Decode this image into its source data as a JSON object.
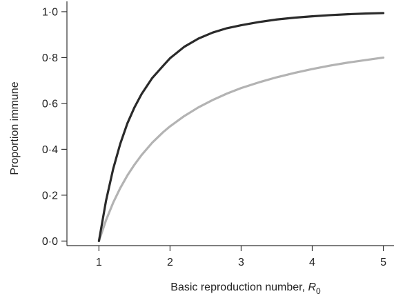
{
  "chart_data": {
    "type": "line",
    "title": "",
    "xlabel": "Basic reproduction number, ",
    "xlabel_symbol": "R",
    "xlabel_subscript": "0",
    "ylabel": "Proportion immune",
    "xlim": [
      0.55,
      5.15
    ],
    "ylim": [
      -0.02,
      1.045
    ],
    "xticks": [
      {
        "value": 1,
        "label": "1"
      },
      {
        "value": 2,
        "label": "2"
      },
      {
        "value": 3,
        "label": "3"
      },
      {
        "value": 4,
        "label": "4"
      },
      {
        "value": 5,
        "label": "5"
      }
    ],
    "yticks": [
      {
        "value": 0.0,
        "label": "0·0"
      },
      {
        "value": 0.2,
        "label": "0·2"
      },
      {
        "value": 0.4,
        "label": "0·4"
      },
      {
        "value": 0.6,
        "label": "0·6"
      },
      {
        "value": 0.8,
        "label": "0·8"
      },
      {
        "value": 1.0,
        "label": "1·0"
      }
    ],
    "grid": false,
    "legend": "none",
    "series": [
      {
        "color": "#2a2a2a",
        "x": [
          1,
          1.1,
          1.2,
          1.3,
          1.4,
          1.5,
          1.6,
          1.75,
          1.9,
          2.0,
          2.2,
          2.4,
          2.6,
          2.8,
          3.0,
          3.25,
          3.5,
          3.75,
          4.0,
          4.25,
          4.5,
          4.75,
          5.0
        ],
        "y": [
          0.0,
          0.176,
          0.314,
          0.424,
          0.513,
          0.583,
          0.641,
          0.711,
          0.763,
          0.797,
          0.847,
          0.883,
          0.909,
          0.928,
          0.941,
          0.955,
          0.966,
          0.974,
          0.98,
          0.985,
          0.989,
          0.992,
          0.994
        ]
      },
      {
        "color": "#b3b3b3",
        "x": [
          1,
          1.1,
          1.2,
          1.3,
          1.4,
          1.5,
          1.6,
          1.75,
          1.9,
          2.0,
          2.2,
          2.4,
          2.6,
          2.8,
          3.0,
          3.25,
          3.5,
          3.75,
          4.0,
          4.25,
          4.5,
          4.75,
          5.0
        ],
        "y": [
          0.0,
          0.091,
          0.167,
          0.231,
          0.286,
          0.333,
          0.375,
          0.429,
          0.474,
          0.5,
          0.545,
          0.583,
          0.615,
          0.643,
          0.667,
          0.692,
          0.714,
          0.733,
          0.75,
          0.765,
          0.778,
          0.789,
          0.8
        ]
      }
    ]
  }
}
